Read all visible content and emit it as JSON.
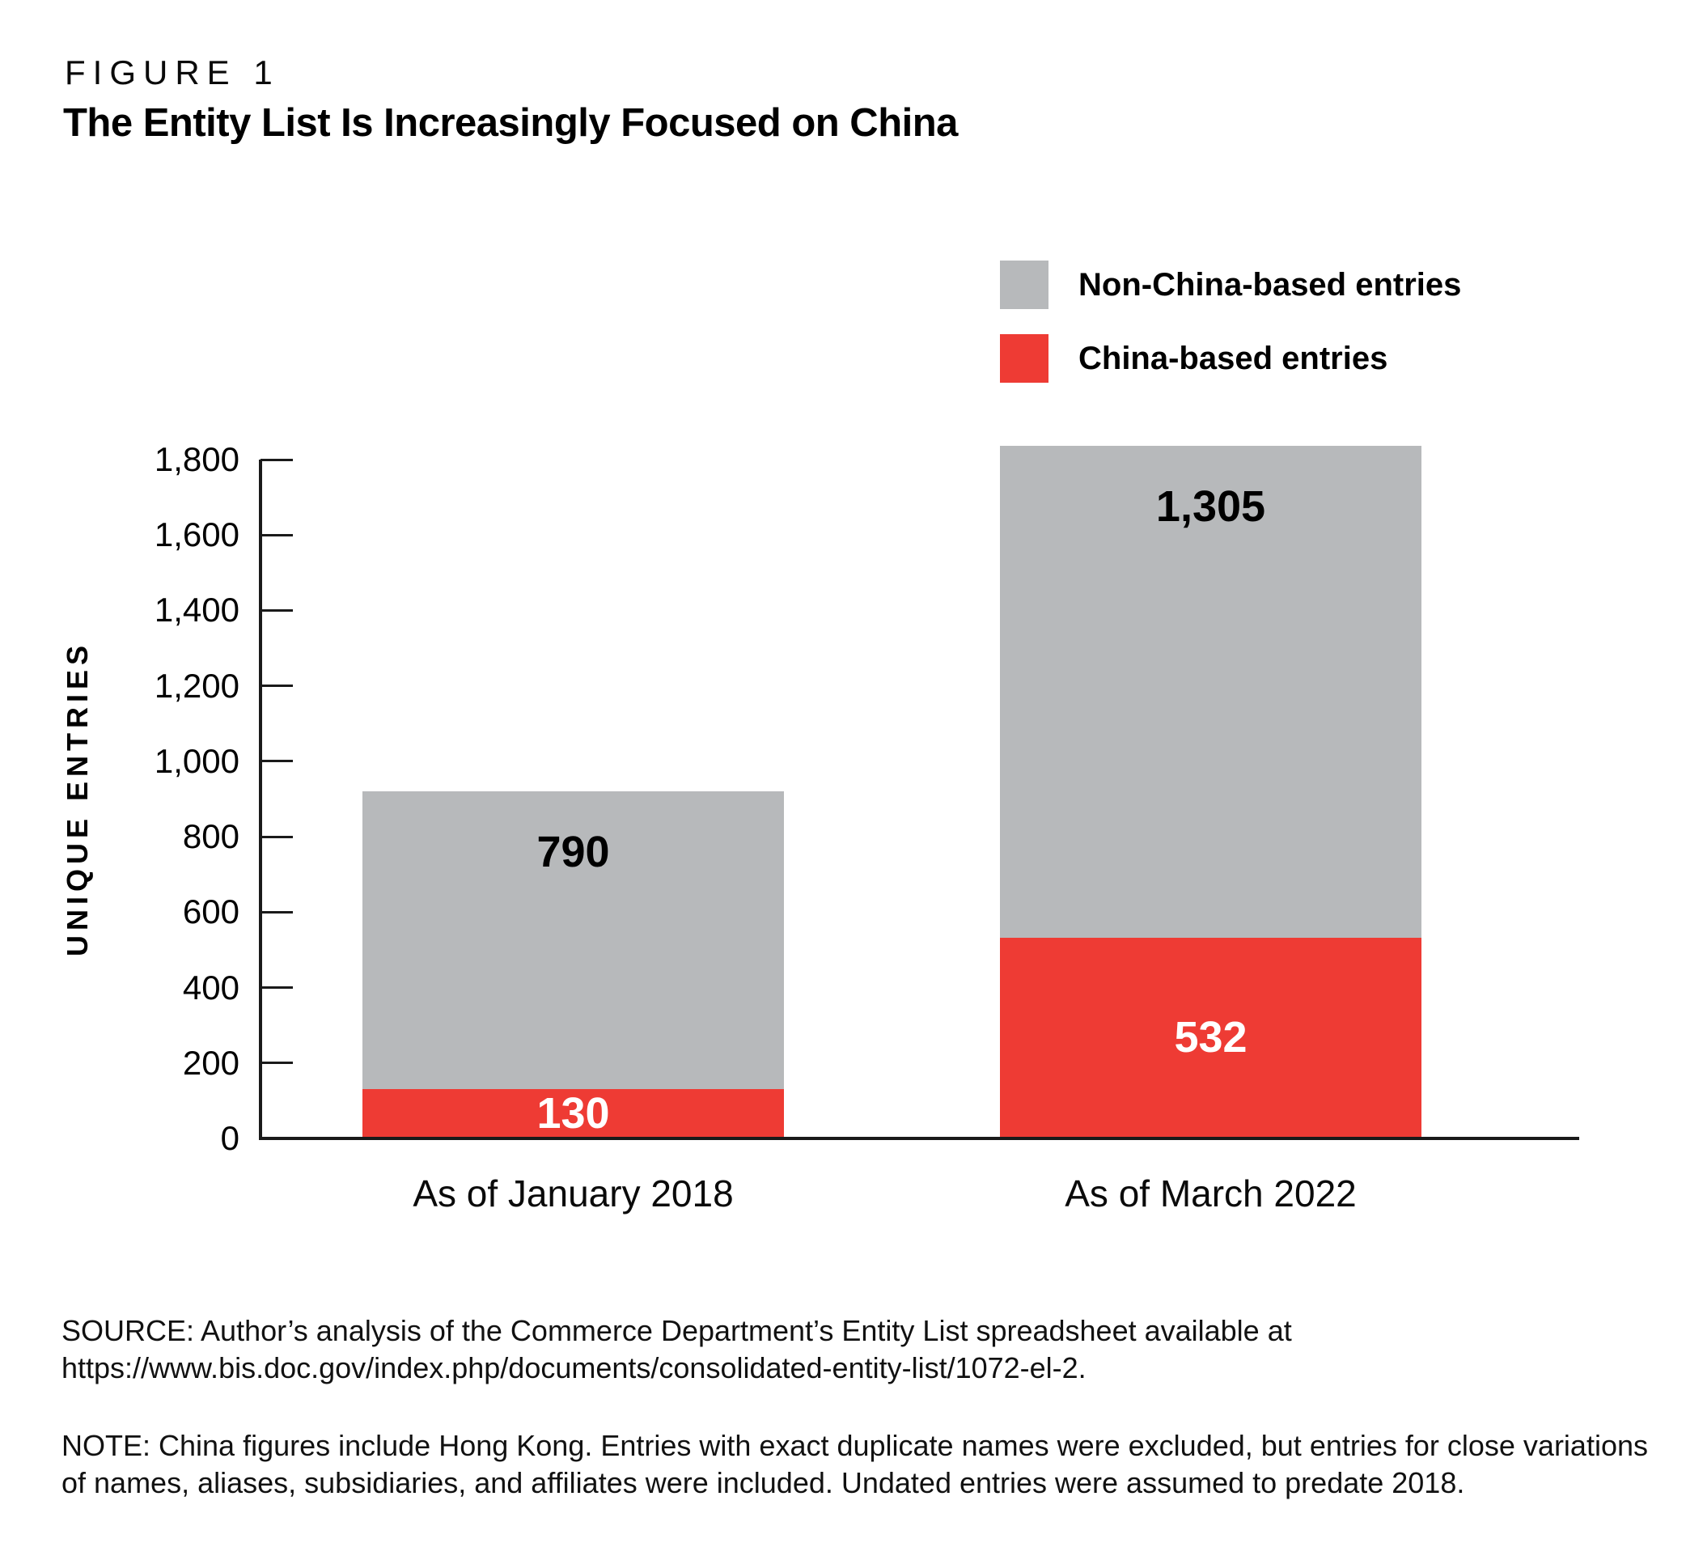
{
  "figure": {
    "eyebrow": "FIGURE 1",
    "title": "The Entity List Is Increasingly Focused on China"
  },
  "colors": {
    "non_china": "#b7b9bb",
    "china": "#ee3b34",
    "axis": "#1a1a1a",
    "value_label_on_gray": "#000000",
    "value_label_on_red": "#ffffff"
  },
  "legend": {
    "items": [
      {
        "label": "Non-China-based entries",
        "color_key": "non_china"
      },
      {
        "label": "China-based entries",
        "color_key": "china"
      }
    ]
  },
  "chart_data": {
    "type": "bar",
    "stacked": true,
    "title": "The Entity List Is Increasingly Focused on China",
    "categories": [
      "As of January 2018",
      "As of March 2022"
    ],
    "series": [
      {
        "name": "China-based entries",
        "color_key": "china",
        "values": [
          130,
          532
        ],
        "value_labels": [
          "130",
          "532"
        ]
      },
      {
        "name": "Non-China-based entries",
        "color_key": "non_china",
        "values": [
          790,
          1305
        ],
        "value_labels": [
          "790",
          "1,305"
        ]
      }
    ],
    "stack_totals": [
      920,
      1837
    ],
    "xlabel": "",
    "ylabel": "UNIQUE ENTRIES",
    "ylim": [
      0,
      1800
    ],
    "y_tick_labels": [
      "0",
      "200",
      "400",
      "600",
      "800",
      "1,000",
      "1,200",
      "1,400",
      "1,600",
      "1,800"
    ],
    "grid": false,
    "legend_position": "top-right"
  },
  "source": {
    "lines": [
      "SOURCE: Author’s analysis of the Commerce Department’s Entity List spreadsheet available at",
      "https://www.bis.doc.gov/index.php/documents/consolidated-entity-list/1072-el-2."
    ]
  },
  "note": {
    "lines": [
      "NOTE: China figures include Hong Kong. Entries with exact duplicate names were excluded, but entries for close variations",
      "of names, aliases, subsidiaries, and affiliates were included. Undated entries were assumed to predate 2018."
    ]
  }
}
